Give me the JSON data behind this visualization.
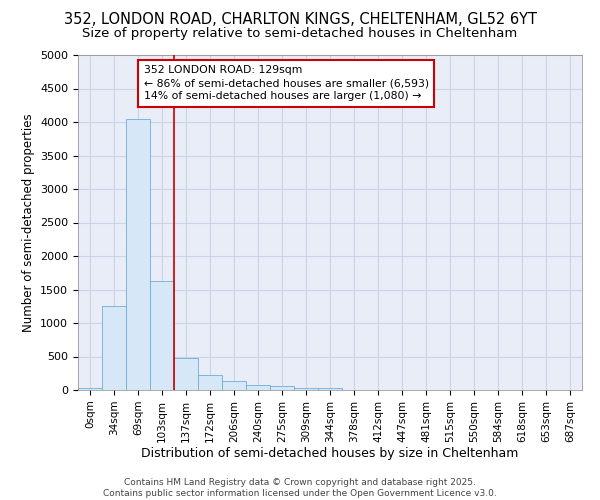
{
  "title_line1": "352, LONDON ROAD, CHARLTON KINGS, CHELTENHAM, GL52 6YT",
  "title_line2": "Size of property relative to semi-detached houses in Cheltenham",
  "xlabel": "Distribution of semi-detached houses by size in Cheltenham",
  "ylabel": "Number of semi-detached properties",
  "footer_line1": "Contains HM Land Registry data © Crown copyright and database right 2025.",
  "footer_line2": "Contains public sector information licensed under the Open Government Licence v3.0.",
  "annotation_title": "352 LONDON ROAD: 129sqm",
  "annotation_line1": "← 86% of semi-detached houses are smaller (6,593)",
  "annotation_line2": "14% of semi-detached houses are larger (1,080) →",
  "bar_color": "#d6e8f7",
  "bar_edge_color": "#6baed6",
  "vline_color": "#cc0000",
  "vline_x": 3.5,
  "categories": [
    "0sqm",
    "34sqm",
    "69sqm",
    "103sqm",
    "137sqm",
    "172sqm",
    "206sqm",
    "240sqm",
    "275sqm",
    "309sqm",
    "344sqm",
    "378sqm",
    "412sqm",
    "447sqm",
    "481sqm",
    "515sqm",
    "550sqm",
    "584sqm",
    "618sqm",
    "653sqm",
    "687sqm"
  ],
  "values": [
    30,
    1250,
    4050,
    1630,
    480,
    220,
    130,
    80,
    60,
    30,
    30,
    0,
    0,
    0,
    0,
    0,
    0,
    0,
    0,
    0,
    0
  ],
  "ylim": [
    0,
    5000
  ],
  "yticks": [
    0,
    500,
    1000,
    1500,
    2000,
    2500,
    3000,
    3500,
    4000,
    4500,
    5000
  ],
  "background_color": "#ffffff",
  "plot_bg_color": "#e8edf7",
  "grid_color": "#c8d4e8"
}
